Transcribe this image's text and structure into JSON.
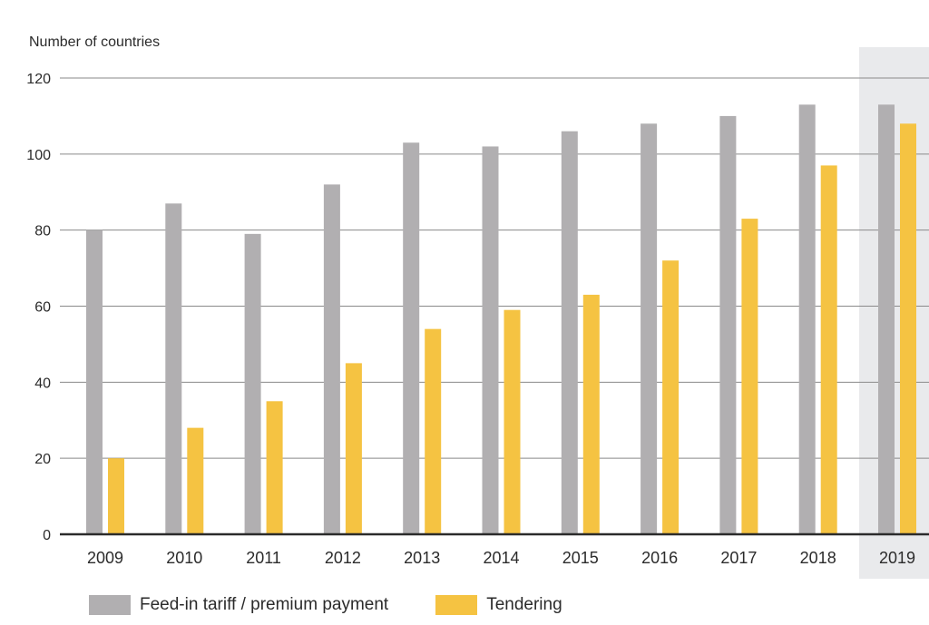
{
  "chart_data": {
    "type": "bar",
    "ylabel": "Number of countries",
    "xlabel": "",
    "ylim": [
      0,
      120
    ],
    "yticks": [
      0,
      20,
      40,
      60,
      80,
      100,
      120
    ],
    "grid": true,
    "legend_position": "bottom",
    "highlighted_category": "2019",
    "categories": [
      "2009",
      "2010",
      "2011",
      "2012",
      "2013",
      "2014",
      "2015",
      "2016",
      "2017",
      "2018",
      "2019"
    ],
    "series": [
      {
        "name": "Feed-in tariff / premium payment",
        "color": "#b1afb1",
        "values": [
          80,
          87,
          79,
          92,
          103,
          102,
          106,
          108,
          110,
          113,
          113
        ]
      },
      {
        "name": "Tendering",
        "color": "#f5c342",
        "values": [
          20,
          28,
          35,
          45,
          54,
          59,
          63,
          72,
          83,
          97,
          108
        ]
      }
    ]
  }
}
